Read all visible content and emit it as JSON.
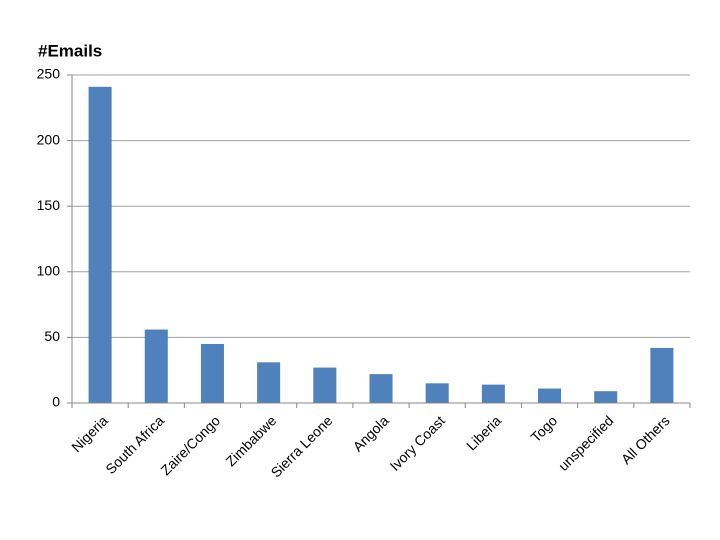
{
  "chart_data": {
    "type": "bar",
    "title": "#Emails",
    "categories": [
      "Nigeria",
      "South Africa",
      "Zaire/Congo",
      "Zimbabwe",
      "Sierra Leone",
      "Angola",
      "Ivory Coast",
      "Liberia",
      "Togo",
      "unspecified",
      "All Others"
    ],
    "values": [
      241,
      56,
      45,
      31,
      27,
      22,
      15,
      14,
      11,
      9,
      42
    ],
    "color": "#4f81bd",
    "ylim": [
      0,
      250
    ],
    "yticks": [
      0,
      50,
      100,
      150,
      200,
      250
    ],
    "grid": true
  }
}
